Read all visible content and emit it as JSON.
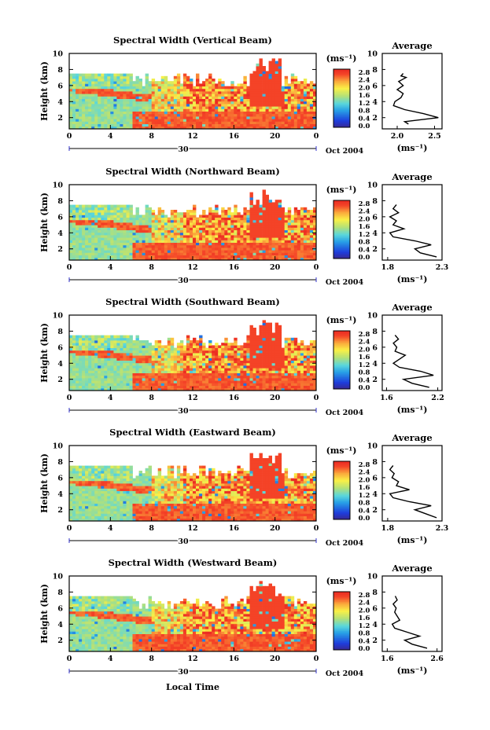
{
  "figure": {
    "x_label": "Local Time",
    "y_label": "Height (km)",
    "date_label": "Oct 2004",
    "day_label": "30",
    "units_label": "(ms⁻¹)",
    "average_title": "Average",
    "average_units": "(ms⁻¹)"
  },
  "chart_data": [
    {
      "type": "heatmap",
      "title": "Spectral Width (Vertical Beam)",
      "x_ticks": [
        "0",
        "4",
        "8",
        "12",
        "16",
        "20",
        "0"
      ],
      "y_ticks": [
        "2",
        "4",
        "6",
        "8",
        "10"
      ],
      "xlim": [
        0,
        24
      ],
      "ylim": [
        0.6,
        10
      ],
      "colorbar": {
        "ticks": [
          "2.8",
          "2.4",
          "2.0",
          "1.6",
          "1.2",
          "0.8",
          "0.4",
          "0.0"
        ],
        "range": [
          0.0,
          2.8
        ]
      },
      "average_profile": {
        "x_ticks": [
          "2.0",
          "2.5"
        ],
        "xlim": [
          1.8,
          2.6
        ],
        "y_ticks": [
          "2",
          "4",
          "6",
          "8",
          "10"
        ],
        "height": [
          1.2,
          1.5,
          2.0,
          2.5,
          3.0,
          3.5,
          4.0,
          4.5,
          5.0,
          5.5,
          6.0,
          6.5,
          7.0,
          7.2,
          7.5
        ],
        "value": [
          2.15,
          2.1,
          2.55,
          2.35,
          2.1,
          1.95,
          1.97,
          2.05,
          2.08,
          2.0,
          2.08,
          2.02,
          2.12,
          2.05,
          2.08
        ]
      }
    },
    {
      "type": "heatmap",
      "title": "Spectral Width (Northward Beam)",
      "x_ticks": [
        "0",
        "4",
        "8",
        "12",
        "16",
        "20",
        "0"
      ],
      "y_ticks": [
        "2",
        "4",
        "6",
        "8",
        "10"
      ],
      "xlim": [
        0,
        24
      ],
      "ylim": [
        0.6,
        10
      ],
      "colorbar": {
        "ticks": [
          "2.8",
          "2.4",
          "2.0",
          "1.6",
          "1.2",
          "0.8",
          "0.4",
          "0.0"
        ],
        "range": [
          0.0,
          2.8
        ]
      },
      "average_profile": {
        "x_ticks": [
          "1.8",
          "2.3"
        ],
        "xlim": [
          1.75,
          2.3
        ],
        "y_ticks": [
          "2",
          "4",
          "6",
          "8",
          "10"
        ],
        "height": [
          1.0,
          1.5,
          2.0,
          2.5,
          3.0,
          3.5,
          4.0,
          4.5,
          5.0,
          5.5,
          6.0,
          6.5,
          7.0,
          7.5
        ],
        "value": [
          2.25,
          2.1,
          2.05,
          2.2,
          2.05,
          1.85,
          1.82,
          1.95,
          1.85,
          1.88,
          1.82,
          1.9,
          1.85,
          1.88
        ]
      }
    },
    {
      "type": "heatmap",
      "title": "Spectral Width (Southward Beam)",
      "x_ticks": [
        "0",
        "4",
        "8",
        "12",
        "16",
        "20",
        "0"
      ],
      "y_ticks": [
        "2",
        "4",
        "6",
        "8",
        "10"
      ],
      "xlim": [
        0,
        24
      ],
      "ylim": [
        0.6,
        10
      ],
      "colorbar": {
        "ticks": [
          "2.8",
          "2.4",
          "2.0",
          "1.6",
          "1.2",
          "0.8",
          "0.4",
          "0.0"
        ],
        "range": [
          0.0,
          2.8
        ]
      },
      "average_profile": {
        "x_ticks": [
          "1.6",
          "2.2"
        ],
        "xlim": [
          1.55,
          2.25
        ],
        "y_ticks": [
          "2",
          "4",
          "6",
          "8",
          "10"
        ],
        "height": [
          1.0,
          1.5,
          2.0,
          2.5,
          3.0,
          3.5,
          4.0,
          4.5,
          5.0,
          5.5,
          6.0,
          6.5,
          7.0,
          7.5
        ],
        "value": [
          2.1,
          1.9,
          1.8,
          2.15,
          2.0,
          1.75,
          1.68,
          1.75,
          1.82,
          1.7,
          1.72,
          1.68,
          1.74,
          1.7
        ]
      }
    },
    {
      "type": "heatmap",
      "title": "Spectral Width (Eastward Beam)",
      "x_ticks": [
        "0",
        "4",
        "8",
        "12",
        "16",
        "20",
        "0"
      ],
      "y_ticks": [
        "2",
        "4",
        "6",
        "8",
        "10"
      ],
      "xlim": [
        0,
        24
      ],
      "ylim": [
        0.6,
        10
      ],
      "colorbar": {
        "ticks": [
          "2.8",
          "2.4",
          "2.0",
          "1.6",
          "1.2",
          "0.8",
          "0.4",
          "0.0"
        ],
        "range": [
          0.0,
          2.8
        ]
      },
      "average_profile": {
        "x_ticks": [
          "1.8",
          "2.3"
        ],
        "xlim": [
          1.75,
          2.3
        ],
        "y_ticks": [
          "2",
          "4",
          "6",
          "8",
          "10"
        ],
        "height": [
          1.0,
          1.5,
          2.0,
          2.5,
          3.0,
          3.5,
          4.0,
          4.5,
          5.0,
          5.5,
          6.0,
          6.5,
          7.0,
          7.5
        ],
        "value": [
          2.25,
          2.15,
          2.05,
          2.2,
          2.0,
          1.85,
          1.82,
          2.0,
          1.88,
          1.9,
          1.84,
          1.86,
          1.82,
          1.85
        ]
      }
    },
    {
      "type": "heatmap",
      "title": "Spectral Width (Westward Beam)",
      "x_ticks": [
        "0",
        "4",
        "8",
        "12",
        "16",
        "20",
        "0"
      ],
      "y_ticks": [
        "2",
        "4",
        "6",
        "8",
        "10"
      ],
      "xlim": [
        0,
        24
      ],
      "ylim": [
        0.6,
        10
      ],
      "colorbar": {
        "ticks": [
          "2.8",
          "2.4",
          "2.0",
          "1.6",
          "1.2",
          "0.8",
          "0.4",
          "0.0"
        ],
        "range": [
          0.0,
          2.8
        ]
      },
      "average_profile": {
        "x_ticks": [
          "1.6",
          "2.6"
        ],
        "xlim": [
          1.5,
          2.7
        ],
        "y_ticks": [
          "2",
          "4",
          "6",
          "8",
          "10"
        ],
        "height": [
          1.0,
          1.5,
          2.0,
          2.5,
          3.0,
          3.5,
          4.0,
          4.5,
          5.0,
          5.5,
          6.0,
          6.5,
          7.0,
          7.5
        ],
        "value": [
          2.4,
          2.1,
          1.95,
          2.25,
          2.0,
          1.75,
          1.7,
          1.85,
          1.8,
          1.75,
          1.78,
          1.72,
          1.8,
          1.76
        ]
      }
    }
  ]
}
